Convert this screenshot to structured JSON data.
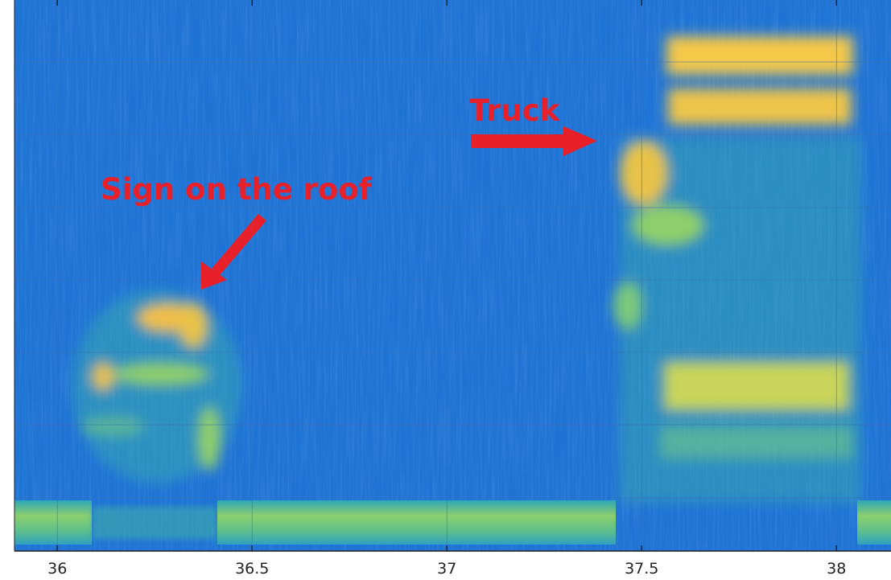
{
  "chart_data": {
    "type": "spectrogram",
    "xlim": [
      35.89,
      38.14
    ],
    "xticks": [
      36,
      36.5,
      37,
      37.5,
      38
    ],
    "grid": true,
    "annotations": [
      {
        "text": "Truck"
      },
      {
        "text": "Sign on the roof"
      }
    ]
  }
}
